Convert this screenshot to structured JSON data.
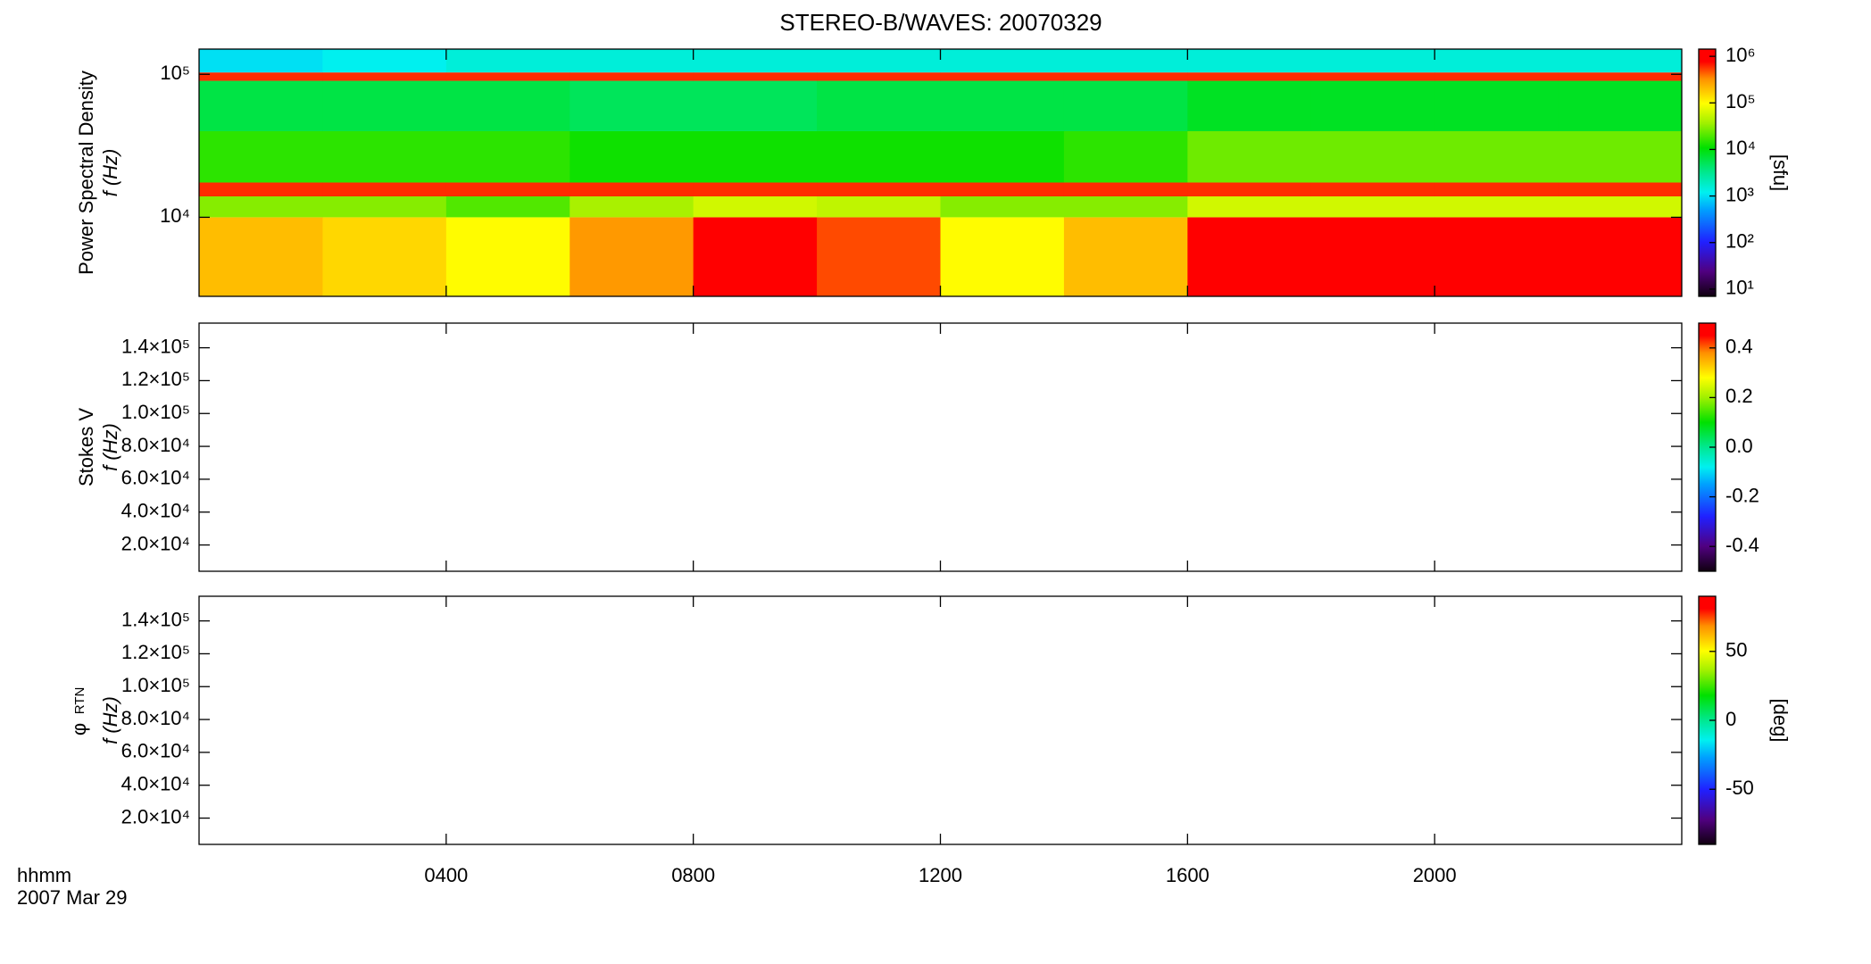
{
  "chart_data": [
    {
      "type": "heatmap",
      "title": "STEREO-B/WAVES: 20070329",
      "ylabel": "Power Spectral Density",
      "ylabel2": "f (Hz)",
      "colorbar_label": "[sfu]",
      "ylog": true,
      "ylim": [
        2800,
        150000
      ],
      "yticks": [
        {
          "value": 10000,
          "label": "10⁴"
        },
        {
          "value": 100000,
          "label": "10⁵"
        }
      ],
      "clog": true,
      "clim": [
        7,
        1430000
      ],
      "cticks": [
        {
          "value": 10,
          "label": "10¹"
        },
        {
          "value": 100,
          "label": "10²"
        },
        {
          "value": 1000,
          "label": "10³"
        },
        {
          "value": 10000,
          "label": "10⁴"
        },
        {
          "value": 100000,
          "label": "10⁵"
        },
        {
          "value": 1000000,
          "label": "10⁶"
        }
      ],
      "x_edges": [
        0,
        2,
        4,
        6,
        8,
        10,
        12,
        14,
        16,
        18,
        20,
        22,
        24
      ],
      "y_edges": [
        2800,
        10000,
        14000,
        17500,
        40000,
        90000,
        103000,
        150000
      ],
      "z": [
        [
          200000,
          150000,
          100000,
          300000,
          1000000,
          500000,
          100000,
          200000,
          1000000,
          800000,
          1000000,
          1000000
        ],
        [
          30000,
          30000,
          20000,
          40000,
          60000,
          50000,
          30000,
          30000,
          60000,
          60000,
          60000,
          60000
        ],
        [
          600000,
          600000,
          600000,
          600000,
          600000,
          600000,
          600000,
          600000,
          600000,
          600000,
          600000,
          600000
        ],
        [
          15000,
          15000,
          15000,
          12000,
          12000,
          12000,
          12000,
          15000,
          25000,
          25000,
          25000,
          25000
        ],
        [
          6000,
          6000,
          6000,
          5000,
          5000,
          6000,
          6000,
          6000,
          8000,
          8000,
          8000,
          8000
        ],
        [
          600000,
          600000,
          600000,
          600000,
          600000,
          600000,
          600000,
          600000,
          600000,
          600000,
          600000,
          600000
        ],
        [
          1000,
          1200,
          1500,
          1500,
          1500,
          1500,
          1500,
          1500,
          1500,
          1500,
          1500,
          1500
        ]
      ]
    },
    {
      "type": "heatmap",
      "ylabel": "Stokes V",
      "ylabel2": "f (Hz)",
      "ylim": [
        4000,
        155000
      ],
      "yticks": [
        {
          "value": 20000,
          "label": "2.0×10⁴"
        },
        {
          "value": 40000,
          "label": "4.0×10⁴"
        },
        {
          "value": 60000,
          "label": "6.0×10⁴"
        },
        {
          "value": 80000,
          "label": "8.0×10⁴"
        },
        {
          "value": 100000,
          "label": "1.0×10⁵"
        },
        {
          "value": 120000,
          "label": "1.2×10⁵"
        },
        {
          "value": 140000,
          "label": "1.4×10⁵"
        }
      ],
      "clim": [
        -0.5,
        0.5
      ],
      "cticks": [
        -0.4,
        -0.2,
        {
          "value": 0,
          "label": "0.0"
        },
        0.2,
        0.4
      ]
    },
    {
      "type": "heatmap",
      "ylabel": "φ",
      "ylabel_sub": "RTN",
      "ylabel2": "f (Hz)",
      "colorbar_label": "[deg]",
      "ylim": [
        4000,
        155000
      ],
      "yticks": [
        {
          "value": 20000,
          "label": "2.0×10⁴"
        },
        {
          "value": 40000,
          "label": "4.0×10⁴"
        },
        {
          "value": 60000,
          "label": "6.0×10⁴"
        },
        {
          "value": 80000,
          "label": "8.0×10⁴"
        },
        {
          "value": 100000,
          "label": "1.0×10⁵"
        },
        {
          "value": 120000,
          "label": "1.2×10⁵"
        },
        {
          "value": 140000,
          "label": "1.4×10⁵"
        }
      ],
      "clim": [
        -90,
        90
      ],
      "cticks": [
        -50,
        0,
        50
      ],
      "xlabel": "hhmm",
      "xlabel2": "2007 Mar 29",
      "xlim": [
        0,
        24
      ],
      "xticks": [
        {
          "value": 4,
          "label": "0400"
        },
        {
          "value": 8,
          "label": "0800"
        },
        {
          "value": 12,
          "label": "1200"
        },
        {
          "value": 16,
          "label": "1600"
        },
        {
          "value": 20,
          "label": "2000"
        }
      ]
    }
  ]
}
